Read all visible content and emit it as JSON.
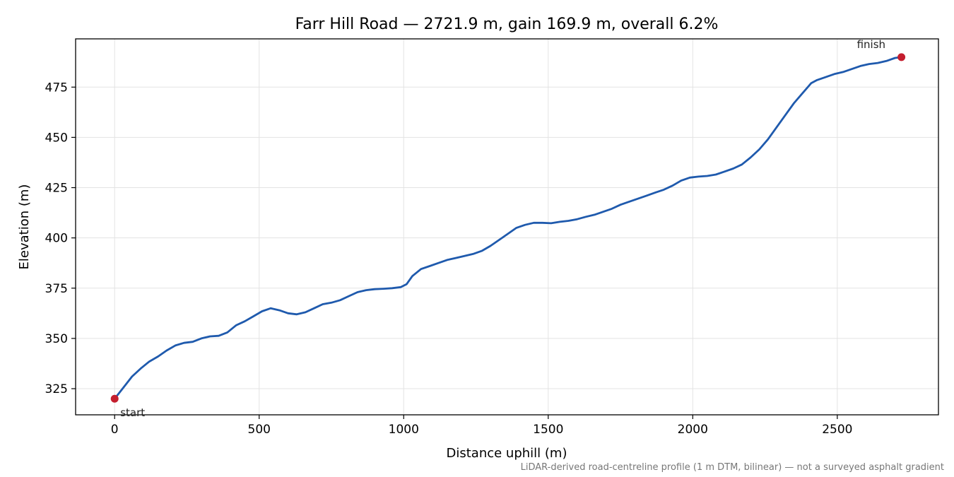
{
  "chart_data": {
    "type": "line",
    "title": "Farr Hill Road — 2721.9 m, gain 169.9 m, overall 6.2%",
    "xlabel": "Distance uphill (m)",
    "ylabel": "Elevation (m)",
    "xlim": [
      -135,
      2850
    ],
    "ylim": [
      312,
      499
    ],
    "xticks": [
      0,
      500,
      1000,
      1500,
      2000,
      2500
    ],
    "yticks": [
      325,
      350,
      375,
      400,
      425,
      450,
      475
    ],
    "grid": true,
    "colors": {
      "line": "#1f5aad",
      "markers": "#c41e2e"
    },
    "series": [
      {
        "x": [
          0,
          30,
          60,
          90,
          120,
          150,
          180,
          210,
          240,
          270,
          300,
          330,
          360,
          390,
          420,
          450,
          480,
          510,
          540,
          570,
          600,
          630,
          660,
          690,
          720,
          750,
          780,
          810,
          840,
          870,
          900,
          930,
          960,
          990,
          1010,
          1030,
          1060,
          1090,
          1120,
          1150,
          1180,
          1210,
          1240,
          1270,
          1300,
          1330,
          1360,
          1390,
          1420,
          1450,
          1480,
          1510,
          1540,
          1570,
          1600,
          1630,
          1660,
          1690,
          1720,
          1750,
          1780,
          1810,
          1840,
          1870,
          1900,
          1930,
          1960,
          1990,
          2020,
          2050,
          2080,
          2110,
          2140,
          2170,
          2200,
          2230,
          2260,
          2290,
          2320,
          2350,
          2380,
          2410,
          2430,
          2460,
          2490,
          2520,
          2550,
          2580,
          2610,
          2640,
          2670,
          2700,
          2721.9
        ],
        "y": [
          320.0,
          325.5,
          331.0,
          335.0,
          338.5,
          341.0,
          344.0,
          346.5,
          347.8,
          348.3,
          350.0,
          351.0,
          351.3,
          353.0,
          356.5,
          358.5,
          361.0,
          363.5,
          365.0,
          364.0,
          362.5,
          362.0,
          363.0,
          365.0,
          367.0,
          367.8,
          369.0,
          371.0,
          373.0,
          374.0,
          374.5,
          374.7,
          375.0,
          375.5,
          377.0,
          381.0,
          384.5,
          386.0,
          387.5,
          389.0,
          390.0,
          391.0,
          392.0,
          393.5,
          396.0,
          399.0,
          402.0,
          405.0,
          406.5,
          407.5,
          407.5,
          407.3,
          408.0,
          408.5,
          409.3,
          410.5,
          411.5,
          413.0,
          414.5,
          416.5,
          418.0,
          419.5,
          421.0,
          422.5,
          424.0,
          426.0,
          428.5,
          430.0,
          430.5,
          430.8,
          431.5,
          433.0,
          434.5,
          436.5,
          440.0,
          444.0,
          449.0,
          455.0,
          461.0,
          467.0,
          472.0,
          477.0,
          478.5,
          480.0,
          481.5,
          482.5,
          484.0,
          485.5,
          486.5,
          487.0,
          488.0,
          489.5,
          489.9
        ]
      }
    ],
    "annotations": [
      {
        "label": "start",
        "x": 0,
        "y": 320.0
      },
      {
        "label": "finish",
        "x": 2721.9,
        "y": 489.9
      }
    ],
    "footnote": "LiDAR-derived road-centreline profile (1 m DTM, bilinear) — not a surveyed asphalt gradient"
  }
}
